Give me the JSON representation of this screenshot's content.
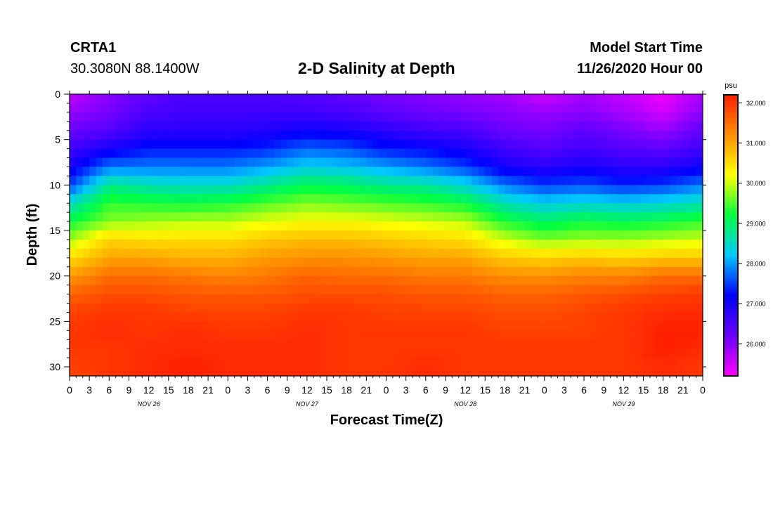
{
  "header": {
    "station_id": "CRTA1",
    "station_coords": "30.3080N 88.1400W",
    "title": "2-D Salinity at Depth",
    "model_start_label": "Model Start Time",
    "model_start_value": "11/26/2020 Hour 00"
  },
  "chart_data": {
    "type": "heatmap",
    "title": "2-D Salinity at Depth",
    "xlabel": "Forecast Time(Z)",
    "ylabel": "Depth (ft)",
    "x_range_hours": [
      0,
      96
    ],
    "x_tick_step_hours": 3,
    "x_tick_labels": [
      "0",
      "3",
      "6",
      "9",
      "12",
      "15",
      "18",
      "21",
      "0",
      "3",
      "6",
      "9",
      "12",
      "15",
      "18",
      "21",
      "0",
      "3",
      "6",
      "9",
      "12",
      "15",
      "18",
      "21",
      "0",
      "3",
      "6",
      "9",
      "12",
      "15",
      "18",
      "21",
      "0"
    ],
    "day_labels": [
      {
        "hour": 12,
        "label": "NOV 26"
      },
      {
        "hour": 36,
        "label": "NOV 27"
      },
      {
        "hour": 60,
        "label": "NOV 28"
      },
      {
        "hour": 84,
        "label": "NOV 29"
      }
    ],
    "y_range_ft": [
      0,
      31
    ],
    "y_ticks": [
      0,
      5,
      10,
      15,
      20,
      25,
      30
    ],
    "y_tick_labels": [
      "0",
      "5",
      "10",
      "15",
      "20",
      "25",
      "30"
    ],
    "colorbar": {
      "unit": "psu",
      "min": 25.2,
      "max": 32.2,
      "ticks": [
        26,
        27,
        28,
        29,
        30,
        31,
        32
      ],
      "tick_labels": [
        "26.000",
        "27.000",
        "28.000",
        "29.000",
        "30.000",
        "31.000",
        "32.000"
      ]
    },
    "time_hours": [
      0,
      6,
      12,
      18,
      24,
      30,
      36,
      42,
      48,
      54,
      60,
      66,
      72,
      78,
      84,
      90,
      96
    ],
    "depth_ft": [
      0,
      2,
      4,
      6,
      8,
      10,
      12,
      14,
      16,
      18,
      20,
      22,
      24,
      26,
      28,
      30,
      31
    ],
    "salinity_psu": [
      [
        25.6,
        25.9,
        26.2,
        26.6,
        27.0,
        27.5,
        28.5,
        29.2,
        29.8,
        30.5,
        31.1,
        31.6,
        31.9,
        32.0,
        32.0,
        31.9,
        31.9
      ],
      [
        26.0,
        26.1,
        26.4,
        27.0,
        27.8,
        28.8,
        29.4,
        29.7,
        30.6,
        31.0,
        31.5,
        31.8,
        32.0,
        32.1,
        32.0,
        32.0,
        32.0
      ],
      [
        26.3,
        26.5,
        26.8,
        27.3,
        27.8,
        28.6,
        29.3,
        29.8,
        30.5,
        31.0,
        31.5,
        31.8,
        32.0,
        32.0,
        32.1,
        32.1,
        32.1
      ],
      [
        26.5,
        26.6,
        26.8,
        27.3,
        27.8,
        28.5,
        29.2,
        29.9,
        30.5,
        30.9,
        31.4,
        31.7,
        31.9,
        32.1,
        32.1,
        32.2,
        32.2
      ],
      [
        26.5,
        26.6,
        26.8,
        27.3,
        27.8,
        28.5,
        29.3,
        29.9,
        30.5,
        30.9,
        31.3,
        31.7,
        31.9,
        32.0,
        32.1,
        32.1,
        32.1
      ],
      [
        26.5,
        26.6,
        26.9,
        27.4,
        28.0,
        28.8,
        29.5,
        30.1,
        30.7,
        31.1,
        31.4,
        31.7,
        31.9,
        32.0,
        32.1,
        32.1,
        32.1
      ],
      [
        26.4,
        26.6,
        27.1,
        27.7,
        28.3,
        29.1,
        29.7,
        30.2,
        30.8,
        31.2,
        31.6,
        31.8,
        32.0,
        32.1,
        32.1,
        32.1,
        32.1
      ],
      [
        26.3,
        26.5,
        27.0,
        27.6,
        28.2,
        29.0,
        29.6,
        30.2,
        30.8,
        31.2,
        31.5,
        31.8,
        32.0,
        32.0,
        32.0,
        32.0,
        32.0
      ],
      [
        26.1,
        26.3,
        26.8,
        27.3,
        28.0,
        28.8,
        29.5,
        30.1,
        30.7,
        31.1,
        31.5,
        31.8,
        31.9,
        32.0,
        32.0,
        32.0,
        32.0
      ],
      [
        26.0,
        26.2,
        26.6,
        27.2,
        27.8,
        28.7,
        29.4,
        30.0,
        30.6,
        31.0,
        31.4,
        31.7,
        31.9,
        32.0,
        32.0,
        32.1,
        32.1
      ],
      [
        25.9,
        26.1,
        26.5,
        27.0,
        27.5,
        28.4,
        29.2,
        29.9,
        30.5,
        31.0,
        31.4,
        31.7,
        31.9,
        32.0,
        32.0,
        32.0,
        32.0
      ],
      [
        25.8,
        26.0,
        26.2,
        26.6,
        27.0,
        27.8,
        28.6,
        29.3,
        30.0,
        30.7,
        31.2,
        31.6,
        31.8,
        31.9,
        32.0,
        32.0,
        32.0
      ],
      [
        25.5,
        25.9,
        26.1,
        26.4,
        26.8,
        27.5,
        28.3,
        29.0,
        29.7,
        30.6,
        31.2,
        31.6,
        31.8,
        31.9,
        32.0,
        32.0,
        32.0
      ],
      [
        25.8,
        26.0,
        26.3,
        26.6,
        27.0,
        27.6,
        28.4,
        29.2,
        29.8,
        30.7,
        31.3,
        31.7,
        31.9,
        31.9,
        32.0,
        32.0,
        32.0
      ],
      [
        25.6,
        25.8,
        26.1,
        26.4,
        26.8,
        27.4,
        28.3,
        29.1,
        29.8,
        30.6,
        31.3,
        31.8,
        32.0,
        32.0,
        32.0,
        32.0,
        32.0
      ],
      [
        25.3,
        25.5,
        25.9,
        26.3,
        26.8,
        27.5,
        28.4,
        29.2,
        29.9,
        30.7,
        31.5,
        31.9,
        32.1,
        32.2,
        32.2,
        32.1,
        32.1
      ],
      [
        25.8,
        26.0,
        26.3,
        26.6,
        27.1,
        27.8,
        28.6,
        29.4,
        30.0,
        30.7,
        31.5,
        32.0,
        32.1,
        32.2,
        32.1,
        32.0,
        32.0
      ]
    ]
  }
}
